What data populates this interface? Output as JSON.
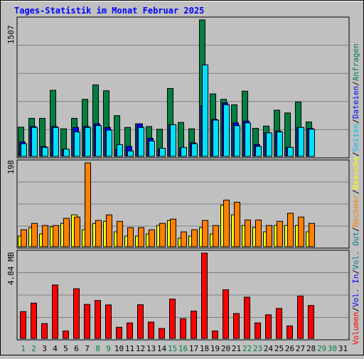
{
  "title": "Tages-Statistik im Monat Februar 2025",
  "scales": {
    "top": "1507",
    "middle": "198",
    "bottom": "4.84 MB"
  },
  "side_labels": [
    {
      "text": "Anfragen",
      "color": "#008040"
    },
    {
      "text": "Dateien",
      "color": "#0000ff"
    },
    {
      "text": "Seiten",
      "color": "#00c0ff"
    },
    {
      "text": "Besuche",
      "color": "#ffff00"
    },
    {
      "text": "Rechner",
      "color": "#ff8000"
    },
    {
      "text": "Vol. Out",
      "color": "#008080"
    },
    {
      "text": "Vol. In",
      "color": "#0000ff"
    },
    {
      "text": "Volumen",
      "color": "#ff0000"
    }
  ],
  "side_separator": "/",
  "colors": {
    "hits": "#008040",
    "files": "#0000ff",
    "pages": "#00e0ff",
    "visits": "#ffff00",
    "sites": "#ff8000",
    "volume": "#ff0000",
    "weekday_label": "#000000",
    "weekend_label": "#008040",
    "title": "#0000ff",
    "panel_bg": "#c0c0c0"
  },
  "chart_data": {
    "type": "bar",
    "title": "Tages-Statistik im Monat Februar 2025",
    "categories": [
      "1",
      "2",
      "3",
      "4",
      "5",
      "6",
      "7",
      "8",
      "9",
      "10",
      "11",
      "12",
      "13",
      "14",
      "15",
      "16",
      "17",
      "18",
      "19",
      "20",
      "21",
      "22",
      "23",
      "24",
      "25",
      "26",
      "27",
      "28",
      "29",
      "30",
      "31"
    ],
    "weekend_days": [
      1,
      2,
      8,
      9,
      15,
      16,
      22,
      23,
      29,
      30
    ],
    "panels": [
      {
        "name": "top",
        "ymax": 1507,
        "series": [
          {
            "name": "Anfragen",
            "values": [
              323,
              420,
              420,
              730,
              305,
              420,
              630,
              790,
              725,
              450,
              320,
              360,
              330,
              300,
              750,
              375,
              305,
              1507,
              690,
              630,
              570,
              720,
              310,
              335,
              510,
              480,
              600,
              380,
              0,
              0,
              0
            ]
          },
          {
            "name": "Dateien",
            "values": [
              160,
              330,
              110,
              330,
              80,
              320,
              330,
              360,
              320,
              80,
              110,
              360,
              200,
              80,
              350,
              95,
              150,
              560,
              410,
              590,
              370,
              390,
              130,
              260,
              280,
              100,
              320,
              310,
              0,
              0,
              0
            ]
          },
          {
            "name": "Seiten",
            "values": [
              140,
              320,
              100,
              320,
              80,
              270,
              320,
              340,
              290,
              130,
              60,
              320,
              170,
              90,
              350,
              100,
              140,
              1010,
              400,
              570,
              340,
              370,
              110,
              260,
              270,
              100,
              320,
              300,
              0,
              0,
              0
            ]
          }
        ]
      },
      {
        "name": "middle",
        "ymax": 198,
        "series": [
          {
            "name": "Besuche",
            "values": [
              25,
              45,
              30,
              47,
              55,
              75,
              40,
              55,
              60,
              35,
              25,
              25,
              30,
              50,
              62,
              20,
              25,
              45,
              30,
              98,
              75,
              50,
              45,
              35,
              50,
              50,
              50,
              35,
              0,
              0,
              0
            ]
          },
          {
            "name": "Rechner",
            "values": [
              40,
              55,
              50,
              50,
              67,
              70,
              198,
              62,
              75,
              60,
              45,
              45,
              40,
              55,
              65,
              35,
              40,
              62,
              50,
              110,
              105,
              63,
              63,
              50,
              60,
              79,
              70,
              55,
              0,
              0,
              0
            ]
          }
        ]
      },
      {
        "name": "bottom",
        "ymax": 4.84,
        "unit": "MB",
        "series": [
          {
            "name": "Volumen",
            "values": [
              1.52,
              2.0,
              0.84,
              3.03,
              0.42,
              2.82,
              1.93,
              2.15,
              1.9,
              0.63,
              0.88,
              1.91,
              0.93,
              0.56,
              2.23,
              1.12,
              1.55,
              4.84,
              0.42,
              2.76,
              1.41,
              2.34,
              0.88,
              1.34,
              1.7,
              0.71,
              2.4,
              1.87,
              0,
              0,
              0
            ]
          }
        ]
      }
    ]
  }
}
